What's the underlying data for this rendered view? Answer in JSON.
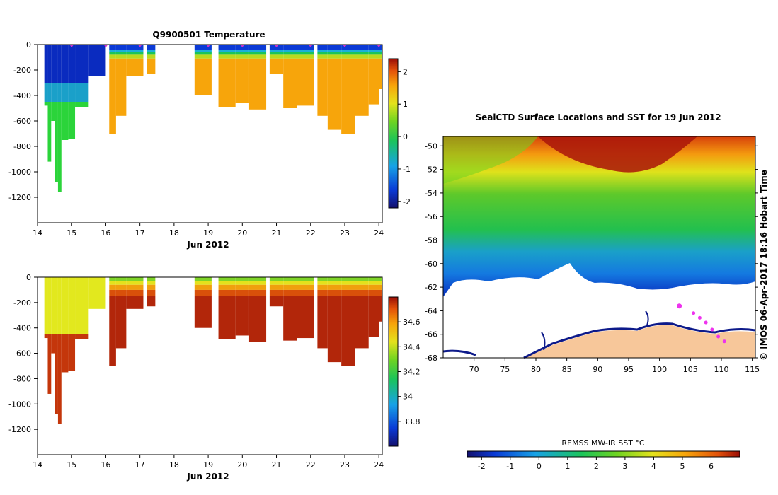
{
  "top_panel": {
    "title": "Q9900501  Temperature",
    "xlabel": "Jun 2012"
  },
  "bottom_panel": {
    "xlabel": "Jun 2012"
  },
  "map_panel": {
    "title": "SealCTD Surface Locations and SST for 19 Jun 2012",
    "side_text": "© IMOS 06-Apr-2017 18:16 Hobart Time",
    "colorbar_label": "REMSS MW-IR SST °C"
  },
  "colors": {
    "land": "#f7c79a",
    "ice": "#ffffff",
    "seal_track": "#ee33ee",
    "surface_marker": "#cc33cc"
  },
  "chart_data": [
    {
      "type": "heatmap",
      "name": "temperature-section",
      "title": "Q9900501  Temperature",
      "xlabel": "Jun 2012",
      "ylabel": "",
      "xlim": [
        14,
        24.1
      ],
      "ylim": [
        -1400,
        0
      ],
      "xticks": [
        "14",
        "15",
        "16",
        "17",
        "18",
        "19",
        "20",
        "21",
        "22",
        "23",
        "24"
      ],
      "yticks": [
        "0",
        "-200",
        "-400",
        "-600",
        "-800",
        "-1000",
        "-1200"
      ],
      "colorbar": {
        "ticks": [
          "2",
          "1",
          "0",
          "-1",
          "-2"
        ],
        "range": [
          -2.2,
          2.4
        ]
      },
      "surface_markers_day": [
        15,
        16,
        17,
        19,
        20,
        21,
        22,
        23,
        24
      ],
      "profiles": [
        {
          "day": 14.2,
          "max_depth": 480
        },
        {
          "day": 14.3,
          "max_depth": 920
        },
        {
          "day": 14.4,
          "max_depth": 600
        },
        {
          "day": 14.5,
          "max_depth": 1080
        },
        {
          "day": 14.6,
          "max_depth": 1160
        },
        {
          "day": 14.7,
          "max_depth": 750
        },
        {
          "day": 14.9,
          "max_depth": 740
        },
        {
          "day": 15.1,
          "max_depth": 490
        },
        {
          "day": 15.5,
          "max_depth": 250
        },
        {
          "day": 16.1,
          "max_depth": 700
        },
        {
          "day": 16.3,
          "max_depth": 560
        },
        {
          "day": 16.6,
          "max_depth": 250
        },
        {
          "day": 17.2,
          "max_depth": 230
        },
        {
          "day": 18.6,
          "max_depth": 400
        },
        {
          "day": 19.3,
          "max_depth": 490
        },
        {
          "day": 19.8,
          "max_depth": 460
        },
        {
          "day": 20.2,
          "max_depth": 510
        },
        {
          "day": 20.8,
          "max_depth": 230
        },
        {
          "day": 21.2,
          "max_depth": 500
        },
        {
          "day": 21.6,
          "max_depth": 480
        },
        {
          "day": 22.2,
          "max_depth": 560
        },
        {
          "day": 22.5,
          "max_depth": 670
        },
        {
          "day": 22.9,
          "max_depth": 700
        },
        {
          "day": 23.3,
          "max_depth": 560
        },
        {
          "day": 23.7,
          "max_depth": 470
        },
        {
          "day": 24.0,
          "max_depth": 350
        }
      ]
    },
    {
      "type": "heatmap",
      "name": "salinity-section",
      "title": "",
      "xlabel": "Jun 2012",
      "ylabel": "",
      "xlim": [
        14,
        24.1
      ],
      "ylim": [
        -1400,
        0
      ],
      "xticks": [
        "14",
        "15",
        "16",
        "17",
        "18",
        "19",
        "20",
        "21",
        "22",
        "23",
        "24"
      ],
      "yticks": [
        "0",
        "-200",
        "-400",
        "-600",
        "-800",
        "-1000",
        "-1200"
      ],
      "colorbar": {
        "ticks": [
          "34.6",
          "34.4",
          "34.2",
          "34",
          "33.8"
        ],
        "range": [
          33.6,
          34.8
        ]
      }
    },
    {
      "type": "heatmap",
      "name": "sst-map",
      "title": "SealCTD Surface Locations and SST for 19 Jun 2012",
      "xlabel": "",
      "ylabel": "",
      "xlim": [
        65,
        115.5
      ],
      "ylim": [
        -68,
        -49.2
      ],
      "xticks": [
        "70",
        "75",
        "80",
        "85",
        "90",
        "95",
        "100",
        "105",
        "110",
        "115"
      ],
      "yticks": [
        "-50",
        "-52",
        "-54",
        "-56",
        "-58",
        "-60",
        "-62",
        "-64",
        "-66",
        "-68"
      ],
      "colorbar": {
        "label": "REMSS MW-IR SST °C",
        "ticks": [
          "-2",
          "-1",
          "0",
          "1",
          "2",
          "3",
          "4",
          "5",
          "6"
        ],
        "range": [
          -2.5,
          7
        ]
      },
      "seal_positions": [
        {
          "lon": 103.2,
          "lat": -63.6
        },
        {
          "lon": 105.5,
          "lat": -64.2
        },
        {
          "lon": 106.5,
          "lat": -64.6
        },
        {
          "lon": 107.5,
          "lat": -65.0
        },
        {
          "lon": 108.5,
          "lat": -65.6
        },
        {
          "lon": 109.5,
          "lat": -66.2
        },
        {
          "lon": 110.5,
          "lat": -66.6
        }
      ]
    }
  ]
}
